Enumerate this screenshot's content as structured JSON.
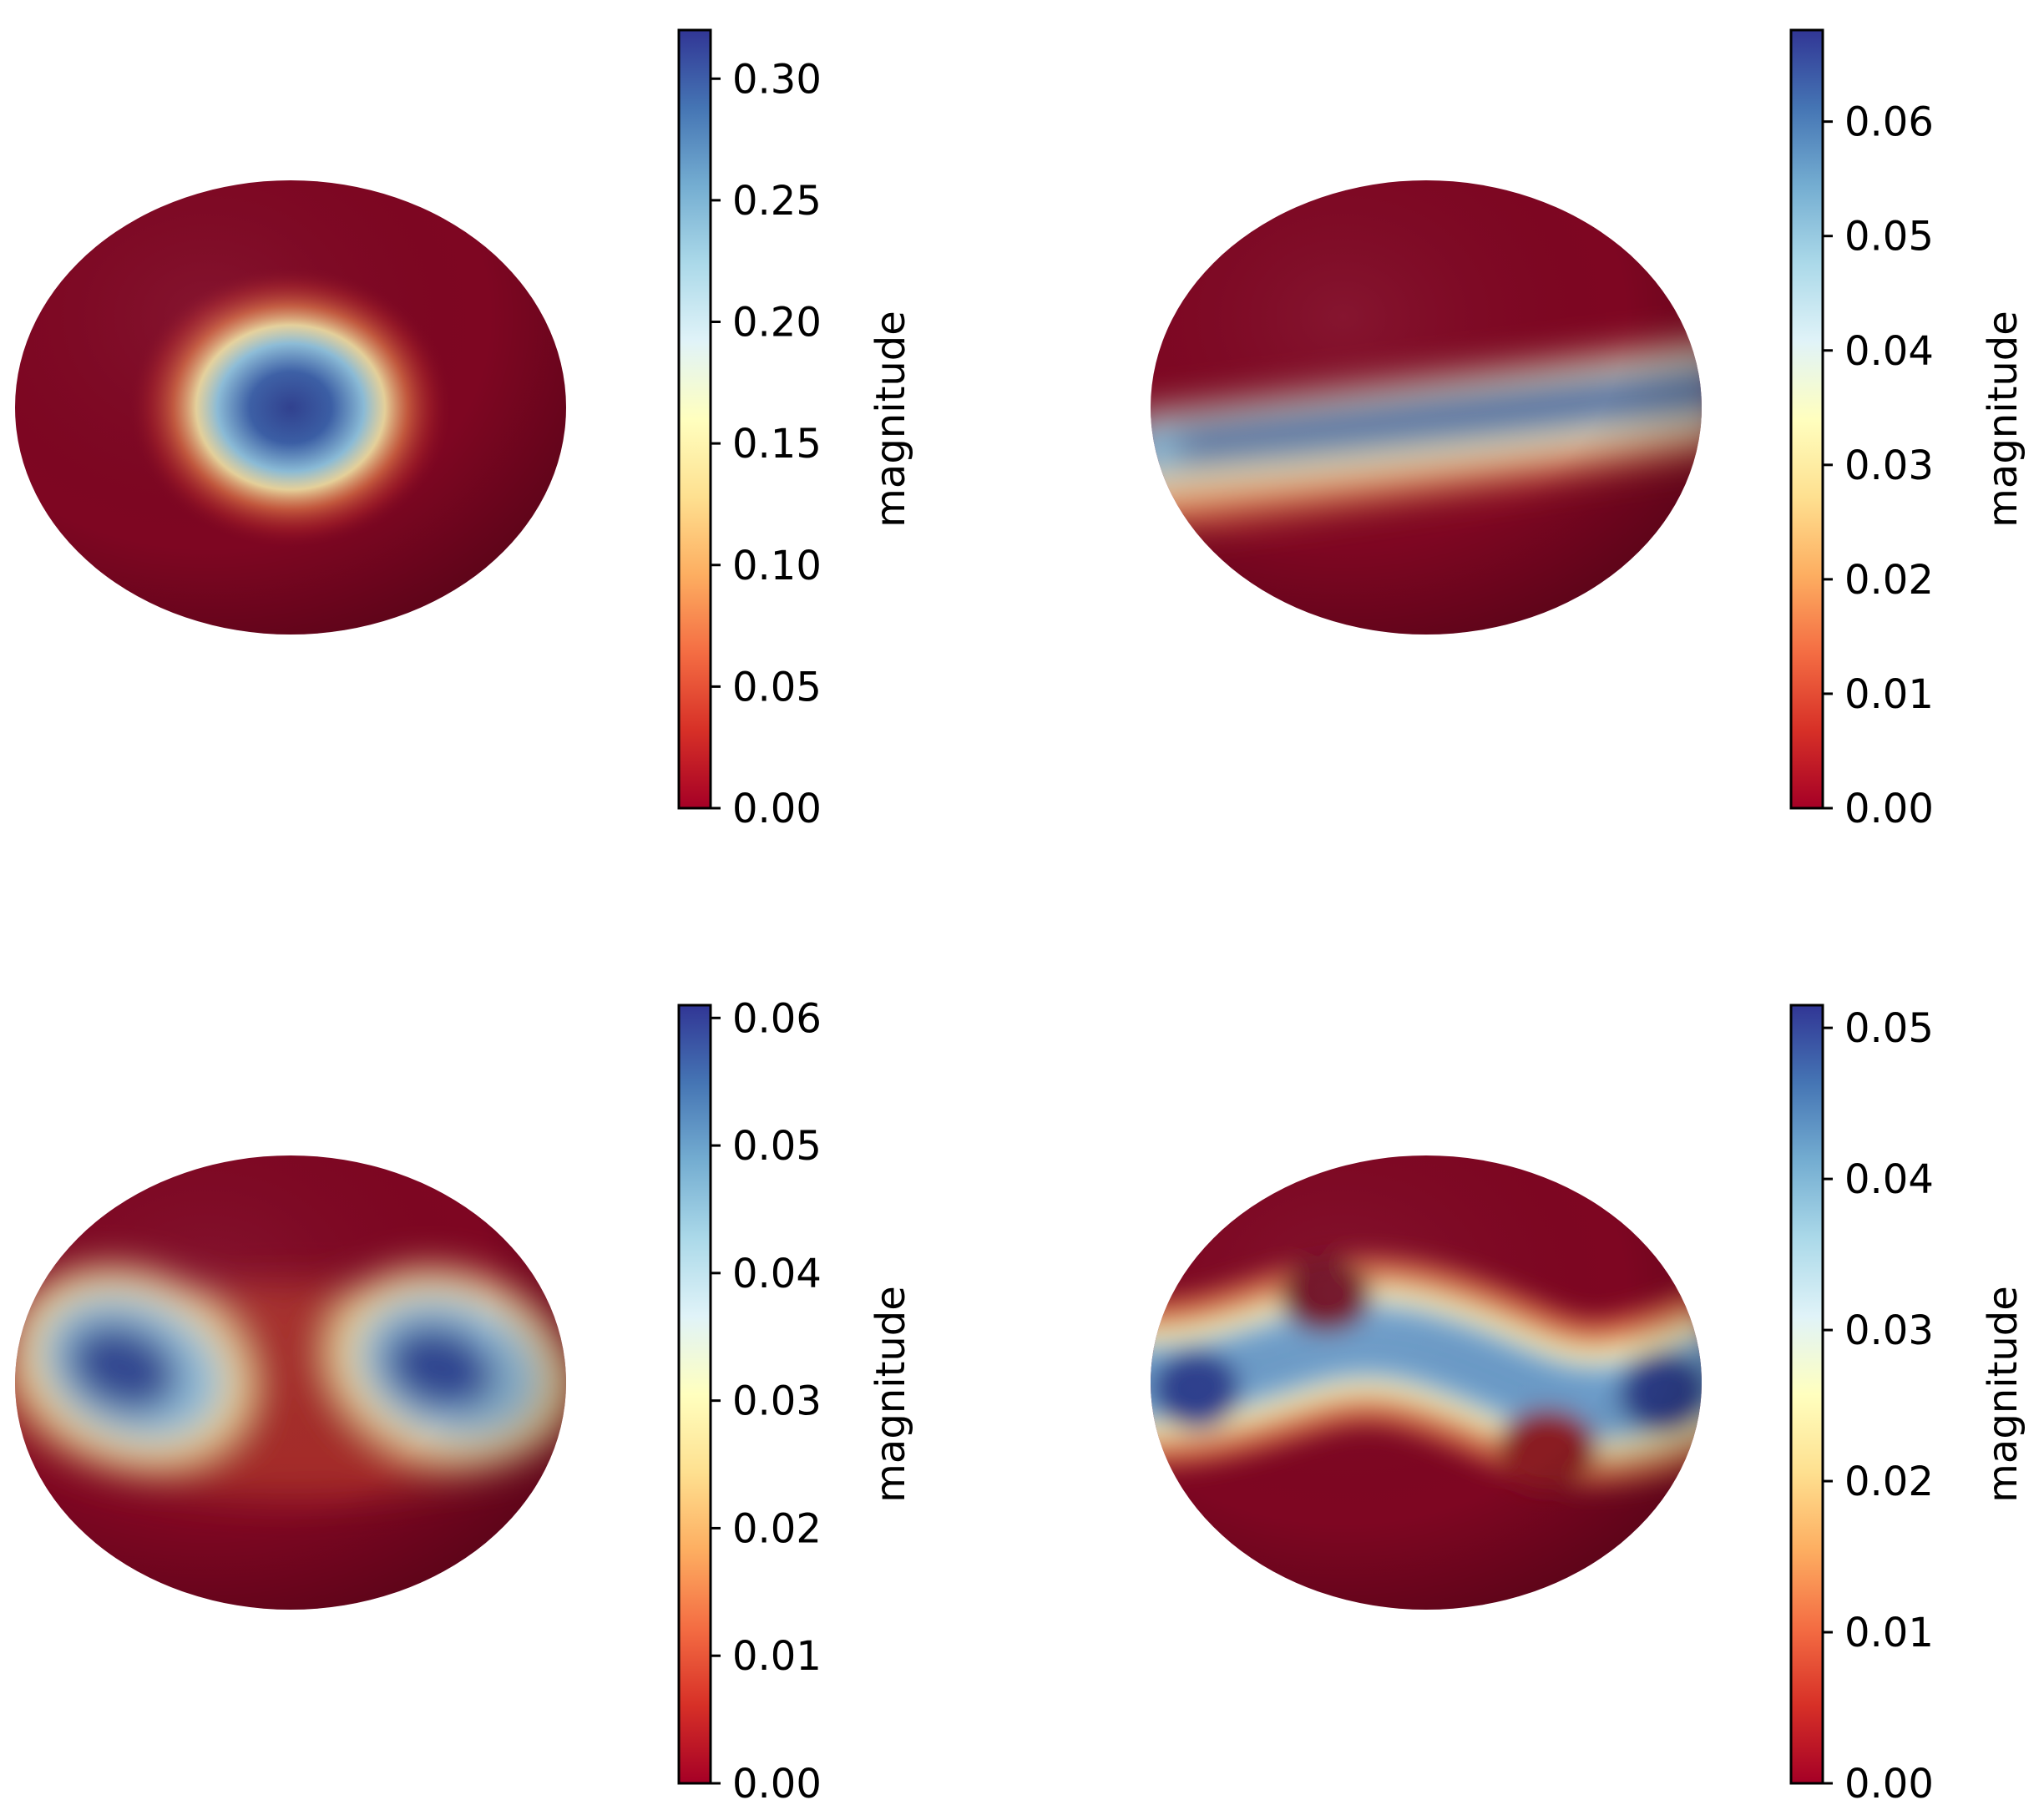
{
  "figure": {
    "background": "#ffffff"
  },
  "colormap": {
    "name": "RdYlBu",
    "stops": [
      "#a50026",
      "#d73027",
      "#f46d43",
      "#fdae61",
      "#fee090",
      "#ffffbf",
      "#e0f3f8",
      "#abd9e9",
      "#74add1",
      "#4575b4",
      "#313695"
    ]
  },
  "chart_data": [
    {
      "type": "heatmap",
      "surface": "sphere",
      "pattern": "single spot centered",
      "colorbar": {
        "label": "magnitude",
        "range": [
          0,
          0.32
        ],
        "ticks": [
          "0.00",
          "0.05",
          "0.10",
          "0.15",
          "0.20",
          "0.25",
          "0.30"
        ],
        "tick_values": [
          0,
          0.05,
          0.1,
          0.15,
          0.2,
          0.25,
          0.3
        ]
      }
    },
    {
      "type": "heatmap",
      "surface": "sphere",
      "pattern": "equatorial band",
      "colorbar": {
        "label": "magnitude",
        "range": [
          0,
          0.068
        ],
        "ticks": [
          "0.00",
          "0.01",
          "0.02",
          "0.03",
          "0.04",
          "0.05",
          "0.06"
        ],
        "tick_values": [
          0,
          0.01,
          0.02,
          0.03,
          0.04,
          0.05,
          0.06
        ]
      }
    },
    {
      "type": "heatmap",
      "surface": "sphere",
      "pattern": "two lobes left and right",
      "colorbar": {
        "label": "magnitude",
        "range": [
          0,
          0.061
        ],
        "ticks": [
          "0.00",
          "0.01",
          "0.02",
          "0.03",
          "0.04",
          "0.05",
          "0.06"
        ],
        "tick_values": [
          0,
          0.01,
          0.02,
          0.03,
          0.04,
          0.05,
          0.06
        ]
      }
    },
    {
      "type": "heatmap",
      "surface": "sphere",
      "pattern": "wavy equatorial band",
      "colorbar": {
        "label": "magnitude",
        "range": [
          0,
          0.0515
        ],
        "ticks": [
          "0.00",
          "0.01",
          "0.02",
          "0.03",
          "0.04",
          "0.05"
        ],
        "tick_values": [
          0,
          0.01,
          0.02,
          0.03,
          0.04,
          0.05
        ]
      }
    }
  ]
}
